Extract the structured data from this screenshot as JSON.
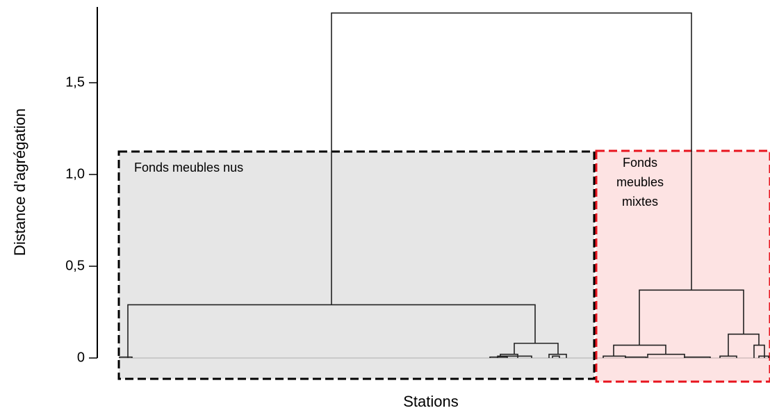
{
  "chart_data": {
    "type": "dendrogram",
    "ylabel": "Distance d'agrégation",
    "xlabel": "Stations",
    "yticks": [
      {
        "value": 0,
        "label": "0"
      },
      {
        "value": 0.5,
        "label": "0,5"
      },
      {
        "value": 1.0,
        "label": "1,0"
      },
      {
        "value": 1.5,
        "label": "1,5"
      }
    ],
    "ylim": [
      0,
      1.9
    ],
    "root_height": 1.88,
    "groups": [
      {
        "name_lines": [
          "Fonds meubles nus"
        ],
        "color": "#000000",
        "fill": "#e6e6e6",
        "cut_height": 1.12
      },
      {
        "name_lines": [
          "Fonds",
          "meubles",
          "mixtes"
        ],
        "color": "#e8141e",
        "fill": "#fde3e3",
        "cut_height": 1.12
      }
    ],
    "merges": [
      {
        "height": 1.88,
        "children": [
          "Fonds meubles nus",
          "Fonds meubles mixtes"
        ]
      },
      {
        "height": 0.29,
        "group": "Fonds meubles nus"
      },
      {
        "height": 0.08,
        "group": "Fonds meubles nus"
      },
      {
        "height": 0.37,
        "group": "Fonds meubles mixtes"
      },
      {
        "height": 0.07,
        "group": "Fonds meubles mixtes"
      },
      {
        "height": 0.13,
        "group": "Fonds meubles mixtes"
      },
      {
        "height": 0.07,
        "group": "Fonds meubles mixtes"
      }
    ]
  }
}
